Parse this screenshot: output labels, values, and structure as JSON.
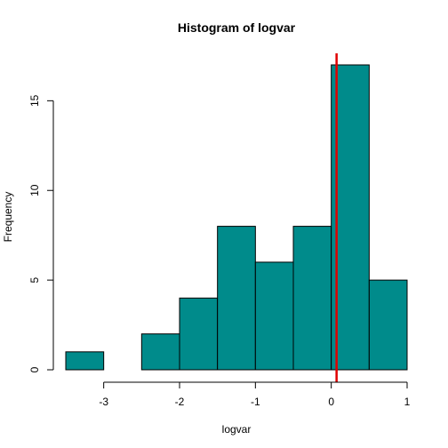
{
  "chart_data": {
    "type": "bar",
    "title": "Histogram of logvar",
    "xlabel": "logvar",
    "ylabel": "Frequency",
    "bins": [
      {
        "start": -3.5,
        "end": -3.0,
        "count": 1
      },
      {
        "start": -3.0,
        "end": -2.5,
        "count": 0
      },
      {
        "start": -2.5,
        "end": -2.0,
        "count": 2
      },
      {
        "start": -2.0,
        "end": -1.5,
        "count": 4
      },
      {
        "start": -1.5,
        "end": -1.0,
        "count": 8
      },
      {
        "start": -1.0,
        "end": -0.5,
        "count": 6
      },
      {
        "start": -0.5,
        "end": 0.0,
        "count": 8
      },
      {
        "start": 0.0,
        "end": 0.5,
        "count": 17
      },
      {
        "start": 0.5,
        "end": 1.0,
        "count": 5
      }
    ],
    "xlim": [
      -3.5,
      1.0
    ],
    "ylim": [
      0,
      17
    ],
    "x_ticks": [
      -3,
      -2,
      -1,
      0,
      1
    ],
    "y_ticks": [
      0,
      5,
      10,
      15
    ],
    "x_tick_labels": [
      "-3",
      "-2",
      "-1",
      "0",
      "1"
    ],
    "y_tick_labels": [
      "0",
      "5",
      "10",
      "15"
    ],
    "reference_line": {
      "x": 0.07,
      "color": "#e00000"
    },
    "bar_color": "#008b8b",
    "grid": false
  }
}
